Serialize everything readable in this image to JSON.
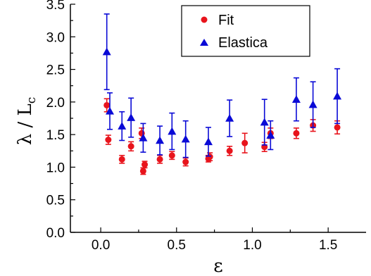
{
  "chart_data": {
    "type": "scatter",
    "title": "",
    "xlabel": "ε",
    "ylabel": "λ / L",
    "ylabel_subscript": "c",
    "xlim": [
      -0.2,
      1.75
    ],
    "ylim": [
      0.0,
      3.5
    ],
    "xticks": [
      0.0,
      0.5,
      1.0,
      1.5
    ],
    "xtick_labels": [
      "0.0",
      "0.5",
      "1.0",
      "1.5"
    ],
    "yticks": [
      0.0,
      0.5,
      1.0,
      1.5,
      2.0,
      2.5,
      3.0,
      3.5
    ],
    "ytick_labels": [
      "0.0",
      "0.5",
      "1.0",
      "1.5",
      "2.0",
      "2.5",
      "3.0",
      "3.5"
    ],
    "grid": false,
    "legend_position": "top-right",
    "series": [
      {
        "name": "Fit",
        "marker": "circle",
        "color": "#e8141c",
        "points": [
          {
            "x": 0.04,
            "y": 1.95,
            "err": 0.1
          },
          {
            "x": 0.05,
            "y": 1.42,
            "err": 0.07
          },
          {
            "x": 0.14,
            "y": 1.12,
            "err": 0.06
          },
          {
            "x": 0.2,
            "y": 1.32,
            "err": 0.07
          },
          {
            "x": 0.27,
            "y": 1.52,
            "err": 0.08
          },
          {
            "x": 0.28,
            "y": 0.94,
            "err": 0.05
          },
          {
            "x": 0.29,
            "y": 1.04,
            "err": 0.05
          },
          {
            "x": 0.39,
            "y": 1.12,
            "err": 0.06
          },
          {
            "x": 0.47,
            "y": 1.18,
            "err": 0.06
          },
          {
            "x": 0.56,
            "y": 1.08,
            "err": 0.06
          },
          {
            "x": 0.71,
            "y": 1.13,
            "err": 0.05
          },
          {
            "x": 0.72,
            "y": 1.16,
            "err": 0.06
          },
          {
            "x": 0.85,
            "y": 1.25,
            "err": 0.07
          },
          {
            "x": 0.95,
            "y": 1.37,
            "err": 0.15
          },
          {
            "x": 1.08,
            "y": 1.31,
            "err": 0.07
          },
          {
            "x": 1.12,
            "y": 1.52,
            "err": 0.08
          },
          {
            "x": 1.29,
            "y": 1.52,
            "err": 0.08
          },
          {
            "x": 1.4,
            "y": 1.64,
            "err": 0.09
          },
          {
            "x": 1.56,
            "y": 1.61,
            "err": 0.1
          }
        ]
      },
      {
        "name": "Elastica",
        "marker": "triangle",
        "color": "#0a0ad6",
        "points": [
          {
            "x": 0.04,
            "y": 2.77,
            "err": 0.58
          },
          {
            "x": 0.06,
            "y": 1.86,
            "err": 0.28
          },
          {
            "x": 0.14,
            "y": 1.63,
            "err": 0.22
          },
          {
            "x": 0.2,
            "y": 1.76,
            "err": 0.3
          },
          {
            "x": 0.28,
            "y": 1.45,
            "err": 0.22
          },
          {
            "x": 0.39,
            "y": 1.41,
            "err": 0.22
          },
          {
            "x": 0.47,
            "y": 1.55,
            "err": 0.28
          },
          {
            "x": 0.56,
            "y": 1.43,
            "err": 0.28
          },
          {
            "x": 0.71,
            "y": 1.39,
            "err": 0.22
          },
          {
            "x": 0.85,
            "y": 1.75,
            "err": 0.28
          },
          {
            "x": 1.08,
            "y": 1.69,
            "err": 0.35
          },
          {
            "x": 1.12,
            "y": 1.49,
            "err": 0.22
          },
          {
            "x": 1.29,
            "y": 2.04,
            "err": 0.33
          },
          {
            "x": 1.4,
            "y": 1.96,
            "err": 0.35
          },
          {
            "x": 1.56,
            "y": 2.09,
            "err": 0.42
          }
        ]
      }
    ]
  }
}
